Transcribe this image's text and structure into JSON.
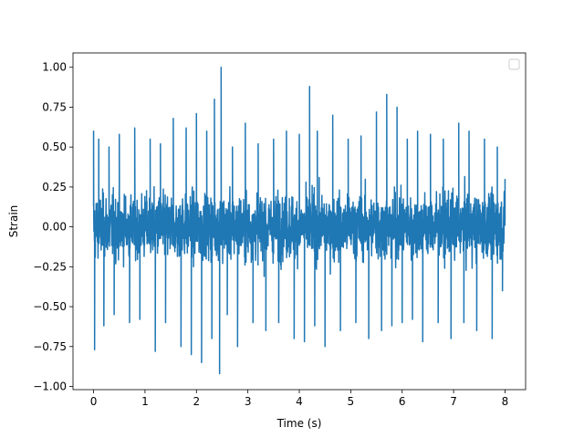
{
  "chart_data": {
    "type": "line",
    "title": "",
    "xlabel": "Time (s)",
    "ylabel": "Strain",
    "xlim": [
      -0.4,
      8.4
    ],
    "ylim": [
      -1.02,
      1.09
    ],
    "xticks": [
      0,
      1,
      2,
      3,
      4,
      5,
      6,
      7,
      8
    ],
    "xtick_labels": [
      "0",
      "1",
      "2",
      "3",
      "4",
      "5",
      "6",
      "7",
      "8"
    ],
    "yticks": [
      -1.0,
      -0.75,
      -0.5,
      -0.25,
      0.0,
      0.25,
      0.5,
      0.75,
      1.0
    ],
    "ytick_labels": [
      "−1.00",
      "−0.75",
      "−0.50",
      "−0.25",
      "0.00",
      "0.25",
      "0.50",
      "0.75",
      "1.00"
    ],
    "grid": false,
    "legend": {
      "position": "upper-right",
      "entries": []
    },
    "series_color": "#1f77b4",
    "series": [
      {
        "noise_amplitude_typical": 0.4,
        "x": [
          0,
          0.02,
          0.1,
          0.2,
          0.3,
          0.4,
          0.5,
          0.7,
          0.8,
          0.9,
          1.1,
          1.2,
          1.3,
          1.4,
          1.55,
          1.7,
          1.8,
          1.9,
          2.0,
          2.1,
          2.2,
          2.3,
          2.35,
          2.45,
          2.48,
          2.6,
          2.7,
          2.8,
          2.95,
          3.1,
          3.2,
          3.35,
          3.5,
          3.6,
          3.75,
          3.9,
          4.0,
          4.1,
          4.2,
          4.3,
          4.35,
          4.5,
          4.65,
          4.8,
          4.95,
          5.1,
          5.2,
          5.35,
          5.5,
          5.6,
          5.7,
          5.8,
          5.9,
          6.0,
          6.1,
          6.2,
          6.3,
          6.4,
          6.55,
          6.7,
          6.8,
          6.95,
          7.1,
          7.2,
          7.3,
          7.45,
          7.6,
          7.75,
          7.85,
          7.95,
          8.0
        ],
        "y": [
          0.6,
          -0.77,
          0.55,
          -0.62,
          0.5,
          -0.55,
          0.58,
          -0.6,
          0.62,
          -0.58,
          0.55,
          -0.78,
          0.52,
          -0.6,
          0.68,
          -0.75,
          0.62,
          -0.8,
          0.71,
          -0.85,
          0.6,
          -0.7,
          0.8,
          -0.92,
          1.0,
          -0.55,
          0.5,
          -0.75,
          0.65,
          -0.6,
          0.52,
          -0.65,
          0.55,
          -0.6,
          0.6,
          -0.7,
          0.58,
          -0.72,
          0.88,
          -0.62,
          0.6,
          -0.75,
          0.7,
          -0.65,
          0.55,
          -0.6,
          0.57,
          -0.7,
          0.72,
          -0.65,
          0.83,
          -0.62,
          0.75,
          -0.6,
          0.55,
          -0.58,
          0.6,
          -0.72,
          0.58,
          -0.6,
          0.55,
          -0.7,
          0.65,
          -0.6,
          0.6,
          -0.65,
          0.55,
          -0.7,
          0.5,
          -0.4,
          0.3
        ]
      }
    ]
  }
}
